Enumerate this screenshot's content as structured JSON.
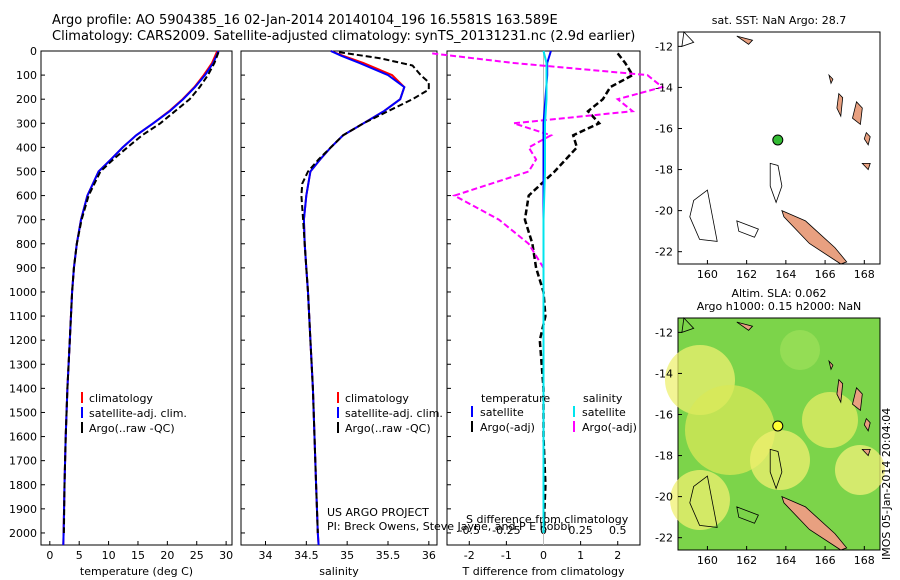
{
  "header": {
    "line1": "Argo profile: AO 5904385_16 02-Jan-2014 20140104_196 16.5581S 163.589E",
    "line2": "Climatology: CARS2009. Satellite-adjusted climatology: synTS_20131231.nc (2.9d earlier)"
  },
  "colors": {
    "clim": "#ff0000",
    "sat": "#0000ff",
    "argo": "#000000",
    "sal_sat": "#00e5ee",
    "sal_argo": "#ff00ff",
    "land": "#e8a080"
  },
  "chart_data": [
    {
      "type": "line",
      "name": "temperature",
      "xlabel": "temperature (deg C)",
      "ylabel": "",
      "xlim": [
        -1.5,
        31
      ],
      "ylim": [
        2050,
        0
      ],
      "xticks": [
        "0",
        "5",
        "10",
        "15",
        "20",
        "25",
        "30"
      ],
      "yticks": [
        "0",
        "100",
        "200",
        "300",
        "400",
        "500",
        "600",
        "700",
        "800",
        "900",
        "1000",
        "1100",
        "1200",
        "1300",
        "1400",
        "1500",
        "1600",
        "1700",
        "1800",
        "1900",
        "2000"
      ],
      "legend": [
        "climatology",
        "satellite-adj. clim.",
        "Argo(..raw -QC)"
      ],
      "series": [
        {
          "name": "climatology",
          "depth": [
            0,
            50,
            100,
            150,
            200,
            250,
            300,
            350,
            400,
            450,
            500,
            600,
            700,
            800,
            900,
            1000,
            1200,
            1400,
            1600,
            1800,
            2000,
            2050
          ],
          "values": [
            28.5,
            27.6,
            26.2,
            24.6,
            22.6,
            20.3,
            17.6,
            14.7,
            12.4,
            10.4,
            8.3,
            6.4,
            5.3,
            4.6,
            4.1,
            3.8,
            3.4,
            3.0,
            2.7,
            2.5,
            2.35,
            2.3
          ]
        },
        {
          "name": "satellite-adj. clim.",
          "depth": [
            0,
            50,
            100,
            150,
            200,
            250,
            300,
            350,
            400,
            450,
            500,
            600,
            700,
            800,
            900,
            1000,
            1200,
            1400,
            1600,
            1800,
            2000,
            2050
          ],
          "values": [
            28.7,
            27.8,
            26.4,
            24.7,
            22.7,
            20.4,
            17.6,
            14.7,
            12.4,
            10.4,
            8.3,
            6.4,
            5.3,
            4.6,
            4.1,
            3.8,
            3.4,
            3.0,
            2.7,
            2.5,
            2.35,
            2.3
          ]
        },
        {
          "name": "Argo(..raw -QC)",
          "depth": [
            5,
            50,
            100,
            150,
            200,
            250,
            300,
            350,
            400,
            450,
            500,
            600,
            700,
            800,
            900,
            1000,
            1200,
            1400,
            1600,
            1800,
            2000
          ],
          "values": [
            28.7,
            28.0,
            26.9,
            25.5,
            23.8,
            21.3,
            18.8,
            15.7,
            13.2,
            10.8,
            8.6,
            6.6,
            5.4,
            4.6,
            4.1,
            3.8,
            3.4,
            3.0,
            2.7,
            2.5,
            2.4
          ]
        }
      ]
    },
    {
      "type": "line",
      "name": "salinity",
      "xlabel": "salinity",
      "xlim": [
        33.7,
        36.1
      ],
      "ylim": [
        2050,
        0
      ],
      "xticks": [
        "34",
        "34.5",
        "35",
        "35.5",
        "36"
      ],
      "legend": [
        "climatology",
        "satellite-adj. clim.",
        "Argo(..raw -QC)"
      ],
      "annotation": [
        "US ARGO PROJECT",
        "PI: Breck Owens, Steve Jayne, and P E Robbi"
      ],
      "series": [
        {
          "name": "climatology",
          "depth": [
            0,
            20,
            50,
            100,
            150,
            200,
            250,
            300,
            350,
            400,
            450,
            500,
            600,
            700,
            800,
            900,
            1000,
            1200,
            1400,
            1600,
            1800,
            2000,
            2050
          ],
          "values": [
            34.8,
            34.95,
            35.2,
            35.55,
            35.7,
            35.65,
            35.45,
            35.2,
            34.95,
            34.8,
            34.67,
            34.55,
            34.5,
            34.47,
            34.48,
            34.5,
            34.52,
            34.55,
            34.58,
            34.6,
            34.62,
            34.64,
            34.65
          ]
        },
        {
          "name": "satellite-adj. clim.",
          "depth": [
            0,
            20,
            50,
            100,
            150,
            200,
            250,
            300,
            350,
            400,
            450,
            500,
            600,
            700,
            800,
            900,
            1000,
            1200,
            1400,
            1600,
            1800,
            2000,
            2050
          ],
          "values": [
            34.8,
            34.93,
            35.15,
            35.5,
            35.7,
            35.65,
            35.45,
            35.2,
            34.95,
            34.8,
            34.67,
            34.55,
            34.5,
            34.47,
            34.48,
            34.5,
            34.52,
            34.55,
            34.58,
            34.6,
            34.62,
            34.64,
            34.65
          ]
        },
        {
          "name": "Argo(..raw -QC)",
          "depth": [
            5,
            30,
            60,
            100,
            130,
            160,
            200,
            250,
            300,
            350,
            400,
            450,
            500,
            550,
            600,
            700,
            800,
            900,
            1000,
            1200,
            1400,
            1600,
            1800,
            2000
          ],
          "values": [
            34.9,
            35.4,
            35.8,
            35.9,
            36.0,
            36.0,
            35.8,
            35.5,
            35.2,
            34.95,
            34.8,
            34.65,
            34.52,
            34.45,
            34.44,
            34.46,
            34.48,
            34.5,
            34.52,
            34.55,
            34.58,
            34.6,
            34.62,
            34.64
          ]
        }
      ]
    },
    {
      "type": "line",
      "name": "difference",
      "xlabel": "T difference from climatology",
      "xlabel2": "S difference from climatology",
      "xlim": [
        -2.6,
        2.6
      ],
      "ylim": [
        2050,
        0
      ],
      "xticks": [
        "-2",
        "-1",
        "0",
        "1",
        "2"
      ],
      "xticks2": [
        "-0.5",
        "-0.25",
        "0",
        "0.25",
        "0.5"
      ],
      "legend_left": [
        "temperature",
        "satellite",
        "Argo(-adj)"
      ],
      "legend_right": [
        "salinity",
        "satellite",
        "Argo(-adj)"
      ],
      "series": [
        {
          "name": "temperature satellite",
          "depth": [
            0,
            50,
            100,
            200,
            300,
            400,
            500,
            700,
            1000,
            2000
          ],
          "values": [
            0.2,
            0.1,
            0.1,
            0.05,
            0,
            0,
            0,
            0,
            0,
            0
          ]
        },
        {
          "name": "temperature Argo(-adj)",
          "depth": [
            10,
            50,
            100,
            150,
            200,
            250,
            300,
            350,
            400,
            450,
            500,
            600,
            700,
            800,
            900,
            1000,
            1100,
            1200,
            1400,
            1600,
            1800,
            2000
          ],
          "values": [
            2.0,
            2.2,
            2.4,
            1.8,
            1.6,
            1.2,
            1.5,
            0.8,
            0.9,
            0.6,
            0.3,
            -0.4,
            -0.5,
            -0.3,
            -0.2,
            0,
            0.05,
            -0.1,
            0,
            0,
            0.05,
            0
          ]
        },
        {
          "name": "salinity satellite",
          "depth": [
            0,
            50,
            100,
            200,
            300,
            400,
            500,
            700,
            1000,
            2000
          ],
          "values": [
            0,
            0.02,
            0.02,
            0.02,
            0.01,
            0.01,
            0.01,
            0,
            0,
            0
          ]
        },
        {
          "name": "salinity Argo(-adj)",
          "depth": [
            10,
            50,
            100,
            150,
            200,
            250,
            300,
            350,
            400,
            450,
            500,
            600,
            700,
            800,
            900
          ],
          "values": [
            -0.75,
            -0.2,
            0.7,
            0.8,
            0.5,
            0.6,
            -0.2,
            0.05,
            -0.1,
            -0.05,
            -0.1,
            -0.6,
            -0.3,
            -0.1,
            0
          ]
        }
      ]
    }
  ],
  "maps": {
    "top": {
      "title": "sat. SST: NaN Argo: 28.7",
      "lat_ticks": [
        "-12",
        "-14",
        "-16",
        "-18",
        "-20",
        "-22"
      ],
      "lon_ticks": [
        "160",
        "162",
        "164",
        "166",
        "168"
      ]
    },
    "bottom": {
      "title1": "Altim. SLA: 0.062",
      "title2": "Argo h1000: 0.15 h2000: NaN",
      "lat_ticks": [
        "-12",
        "-14",
        "-16",
        "-18",
        "-20",
        "-22"
      ],
      "lon_ticks": [
        "160",
        "162",
        "164",
        "166",
        "168"
      ]
    },
    "float_position": {
      "lon": 163.589,
      "lat": -16.5581
    }
  },
  "footer": {
    "vertical_text": "IMOS 05-Jan-2014 20:04:04"
  }
}
